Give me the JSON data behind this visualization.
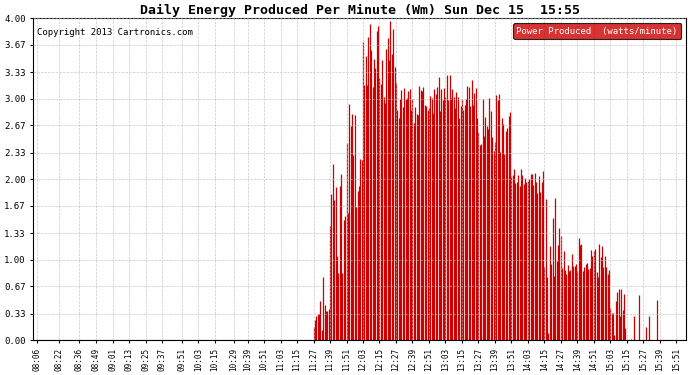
{
  "title": "Daily Energy Produced Per Minute (Wm) Sun Dec 15  15:55",
  "copyright": "Copyright 2013 Cartronics.com",
  "legend_label": "Power Produced  (watts/minute)",
  "legend_bg": "#cc0000",
  "legend_text_color": "#ffffff",
  "line_color": "#cc0000",
  "bg_color": "#ffffff",
  "grid_color": "#bbbbbb",
  "ylim": [
    0.0,
    4.0
  ],
  "yticks": [
    0.0,
    0.33,
    0.67,
    1.0,
    1.33,
    1.67,
    2.0,
    2.33,
    2.67,
    3.0,
    3.33,
    3.67,
    4.0
  ],
  "ytick_labels": [
    "0.00",
    "0.33",
    "0.67",
    "1.00",
    "1.33",
    "1.67",
    "2.00",
    "2.33",
    "2.67",
    "3.00",
    "3.33",
    "3.67",
    "4.00"
  ],
  "x_tick_labels": [
    "08:06",
    "08:22",
    "08:36",
    "08:49",
    "09:01",
    "09:13",
    "09:25",
    "09:37",
    "09:51",
    "10:03",
    "10:15",
    "10:29",
    "10:39",
    "10:51",
    "11:03",
    "11:15",
    "11:27",
    "11:39",
    "11:51",
    "12:03",
    "12:15",
    "12:27",
    "12:39",
    "12:51",
    "13:03",
    "13:15",
    "13:27",
    "13:39",
    "13:51",
    "14:03",
    "14:15",
    "14:27",
    "14:39",
    "14:51",
    "15:03",
    "15:15",
    "15:27",
    "15:39",
    "15:51"
  ],
  "figsize": [
    6.9,
    3.75
  ],
  "dpi": 100
}
